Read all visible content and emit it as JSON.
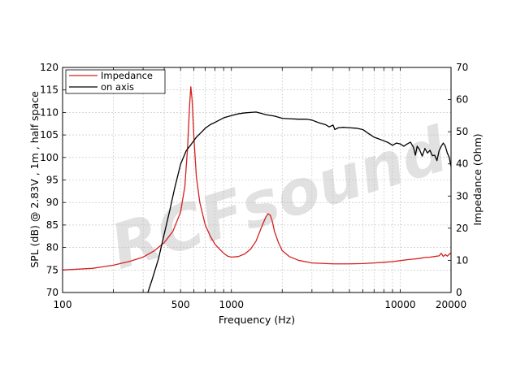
{
  "chart_data": {
    "type": "line",
    "xlabel": "Frequency (Hz)",
    "ylabel_left": "SPL (dB) @ 2.83V , 1m , half space",
    "ylabel_right": "Impedance (Ohm)",
    "x_scale": "log",
    "xlim": [
      100,
      20000
    ],
    "ylim_left": [
      70,
      120
    ],
    "ylim_right": [
      0,
      70
    ],
    "x_ticks": [
      100,
      500,
      1000,
      10000,
      20000
    ],
    "x_tick_labels": [
      "100",
      "500",
      "1000",
      "10000",
      "20000"
    ],
    "y_ticks_left": [
      70,
      75,
      80,
      85,
      90,
      95,
      100,
      105,
      110,
      115,
      120
    ],
    "y_ticks_right": [
      0,
      10,
      20,
      30,
      40,
      50,
      60,
      70
    ],
    "grid": true,
    "legend_position": "top-left",
    "watermark": "RCFsound",
    "series": [
      {
        "name": "Impedance",
        "axis": "right",
        "color": "#d42020",
        "points": [
          [
            100,
            7
          ],
          [
            150,
            7.5
          ],
          [
            200,
            8.5
          ],
          [
            250,
            9.7
          ],
          [
            300,
            11
          ],
          [
            350,
            13
          ],
          [
            400,
            15.5
          ],
          [
            450,
            19
          ],
          [
            500,
            25
          ],
          [
            530,
            33
          ],
          [
            550,
            45
          ],
          [
            565,
            58
          ],
          [
            575,
            64
          ],
          [
            585,
            60
          ],
          [
            600,
            48
          ],
          [
            620,
            36
          ],
          [
            650,
            28
          ],
          [
            700,
            21
          ],
          [
            750,
            17.5
          ],
          [
            800,
            15
          ],
          [
            850,
            13.5
          ],
          [
            900,
            12.2
          ],
          [
            950,
            11.3
          ],
          [
            1000,
            11
          ],
          [
            1100,
            11.2
          ],
          [
            1200,
            12
          ],
          [
            1300,
            13.5
          ],
          [
            1400,
            16
          ],
          [
            1500,
            20
          ],
          [
            1600,
            23.5
          ],
          [
            1650,
            24.5
          ],
          [
            1700,
            24
          ],
          [
            1750,
            22
          ],
          [
            1800,
            19
          ],
          [
            1900,
            15.5
          ],
          [
            2000,
            13
          ],
          [
            2200,
            11.2
          ],
          [
            2500,
            10
          ],
          [
            3000,
            9.2
          ],
          [
            4000,
            8.9
          ],
          [
            5000,
            8.9
          ],
          [
            6000,
            9
          ],
          [
            7000,
            9.2
          ],
          [
            8000,
            9.4
          ],
          [
            9000,
            9.6
          ],
          [
            10000,
            9.9
          ],
          [
            11000,
            10.2
          ],
          [
            12000,
            10.4
          ],
          [
            13000,
            10.6
          ],
          [
            14000,
            10.9
          ],
          [
            15000,
            11
          ],
          [
            16000,
            11.2
          ],
          [
            17000,
            11.4
          ],
          [
            17500,
            12.2
          ],
          [
            18000,
            11.2
          ],
          [
            18500,
            11.8
          ],
          [
            19000,
            11.3
          ],
          [
            19500,
            11.9
          ],
          [
            20000,
            12.3
          ]
        ]
      },
      {
        "name": "on axis",
        "axis": "left",
        "color": "#000000",
        "points": [
          [
            320,
            70
          ],
          [
            340,
            73
          ],
          [
            370,
            77.5
          ],
          [
            400,
            83
          ],
          [
            430,
            88
          ],
          [
            460,
            93
          ],
          [
            500,
            98.5
          ],
          [
            540,
            101.5
          ],
          [
            580,
            103
          ],
          [
            620,
            104.5
          ],
          [
            660,
            105.5
          ],
          [
            700,
            106.5
          ],
          [
            750,
            107.3
          ],
          [
            800,
            107.8
          ],
          [
            900,
            108.8
          ],
          [
            1000,
            109.3
          ],
          [
            1100,
            109.7
          ],
          [
            1200,
            109.9
          ],
          [
            1300,
            110
          ],
          [
            1400,
            110.1
          ],
          [
            1500,
            109.8
          ],
          [
            1600,
            109.5
          ],
          [
            1800,
            109.2
          ],
          [
            2000,
            108.7
          ],
          [
            2200,
            108.6
          ],
          [
            2500,
            108.5
          ],
          [
            2800,
            108.5
          ],
          [
            3000,
            108.3
          ],
          [
            3300,
            107.7
          ],
          [
            3600,
            107.3
          ],
          [
            3800,
            106.8
          ],
          [
            4000,
            107.2
          ],
          [
            4100,
            106.2
          ],
          [
            4300,
            106.6
          ],
          [
            4600,
            106.7
          ],
          [
            5000,
            106.6
          ],
          [
            5500,
            106.5
          ],
          [
            6000,
            106.2
          ],
          [
            6500,
            105.3
          ],
          [
            7000,
            104.5
          ],
          [
            7500,
            104.1
          ],
          [
            8000,
            103.7
          ],
          [
            8500,
            103.3
          ],
          [
            9000,
            102.7
          ],
          [
            9500,
            103.2
          ],
          [
            10000,
            103
          ],
          [
            10500,
            102.5
          ],
          [
            11000,
            103
          ],
          [
            11500,
            103.4
          ],
          [
            12000,
            102.2
          ],
          [
            12300,
            100.5
          ],
          [
            12600,
            102.5
          ],
          [
            13000,
            101.8
          ],
          [
            13500,
            100.3
          ],
          [
            14000,
            102
          ],
          [
            14500,
            101
          ],
          [
            15000,
            101.6
          ],
          [
            15500,
            100.4
          ],
          [
            16000,
            100.5
          ],
          [
            16500,
            99.3
          ],
          [
            17000,
            101.5
          ],
          [
            17500,
            102.5
          ],
          [
            18000,
            103.2
          ],
          [
            18500,
            102.5
          ],
          [
            19000,
            101
          ],
          [
            19500,
            100
          ],
          [
            20000,
            98
          ]
        ]
      }
    ]
  }
}
